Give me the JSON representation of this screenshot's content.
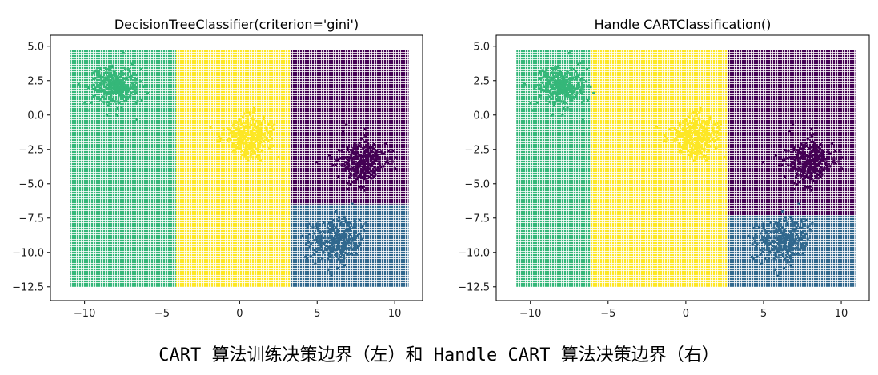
{
  "colors": {
    "purple": "#440154",
    "blue": "#31688e",
    "green": "#35b779",
    "yellow": "#fde725"
  },
  "chart_data": [
    {
      "type": "scatter",
      "title": "DecisionTreeClassifier(criterion='gini')",
      "xlim": [
        -12.2,
        11.8
      ],
      "ylim": [
        -13.5,
        5.8
      ],
      "xticks": [
        -10,
        -5,
        0,
        5,
        10
      ],
      "xtick_labels": [
        "−10",
        "−5",
        "0",
        "5",
        "10"
      ],
      "yticks": [
        5.0,
        2.5,
        0.0,
        -2.5,
        -5.0,
        -7.5,
        -10.0,
        -12.5
      ],
      "ytick_labels": [
        "5.0",
        "2.5",
        "0.0",
        "−2.5",
        "−5.0",
        "−7.5",
        "−10.0",
        "−12.5"
      ],
      "grid_extent": {
        "x": [
          -10.9,
          10.9
        ],
        "y": [
          -12.5,
          4.7
        ]
      },
      "regions": [
        {
          "class": "green",
          "x": [
            -10.9,
            -4.1
          ],
          "y": [
            -12.5,
            4.7
          ]
        },
        {
          "class": "yellow",
          "x": [
            -4.1,
            3.3
          ],
          "y": [
            -12.5,
            4.7
          ]
        },
        {
          "class": "purple",
          "x": [
            3.3,
            10.9
          ],
          "y": [
            -6.5,
            4.7
          ]
        },
        {
          "class": "blue",
          "x": [
            3.3,
            10.9
          ],
          "y": [
            -12.5,
            -6.5
          ]
        }
      ],
      "clusters": [
        {
          "class": "green",
          "center": [
            -8.0,
            2.0
          ],
          "std": 0.75
        },
        {
          "class": "yellow",
          "center": [
            0.6,
            -1.5
          ],
          "std": 0.75
        },
        {
          "class": "purple",
          "center": [
            7.9,
            -3.4
          ],
          "std": 0.8
        },
        {
          "class": "blue",
          "center": [
            6.2,
            -9.2
          ],
          "std": 0.8
        }
      ]
    },
    {
      "type": "scatter",
      "title": "Handle CARTClassification()",
      "xlim": [
        -12.2,
        11.8
      ],
      "ylim": [
        -13.5,
        5.8
      ],
      "xticks": [
        -10,
        -5,
        0,
        5,
        10
      ],
      "xtick_labels": [
        "−10",
        "−5",
        "0",
        "5",
        "10"
      ],
      "yticks": [
        5.0,
        2.5,
        0.0,
        -2.5,
        -5.0,
        -7.5,
        -10.0,
        -12.5
      ],
      "ytick_labels": [
        "5.0",
        "2.5",
        "0.0",
        "−2.5",
        "−5.0",
        "−7.5",
        "−10.0",
        "−12.5"
      ],
      "grid_extent": {
        "x": [
          -10.9,
          10.9
        ],
        "y": [
          -12.5,
          4.7
        ]
      },
      "regions": [
        {
          "class": "green",
          "x": [
            -10.9,
            -6.1
          ],
          "y": [
            -12.5,
            4.7
          ]
        },
        {
          "class": "yellow",
          "x": [
            -6.1,
            2.7
          ],
          "y": [
            -12.5,
            4.7
          ]
        },
        {
          "class": "purple",
          "x": [
            2.7,
            10.9
          ],
          "y": [
            -7.3,
            4.7
          ]
        },
        {
          "class": "blue",
          "x": [
            2.7,
            10.9
          ],
          "y": [
            -12.5,
            -7.3
          ]
        }
      ],
      "clusters": [
        {
          "class": "green",
          "center": [
            -8.0,
            2.0
          ],
          "std": 0.75
        },
        {
          "class": "yellow",
          "center": [
            0.6,
            -1.5
          ],
          "std": 0.75
        },
        {
          "class": "purple",
          "center": [
            7.9,
            -3.4
          ],
          "std": 0.8
        },
        {
          "class": "blue",
          "center": [
            6.2,
            -9.2
          ],
          "std": 0.8
        }
      ]
    }
  ],
  "caption": "CART 算法训练决策边界（左）和 Handle CART 算法决策边界（右）"
}
